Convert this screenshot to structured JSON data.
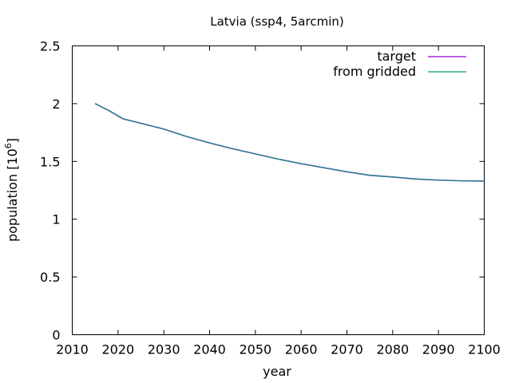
{
  "chart_data": {
    "type": "line",
    "title": "Latvia (ssp4, 5arcmin)",
    "xlabel": "year",
    "ylabel": "population [10",
    "ylabel_sup": "6",
    "ylabel_end": "]",
    "xlim": [
      2010,
      2100
    ],
    "ylim": [
      0,
      2.5
    ],
    "x_ticks": [
      2010,
      2020,
      2030,
      2040,
      2050,
      2060,
      2070,
      2080,
      2090,
      2100
    ],
    "y_ticks": [
      0,
      0.5,
      1,
      1.5,
      2,
      2.5
    ],
    "x_tick_labels": [
      "2010",
      "2020",
      "2030",
      "2040",
      "2050",
      "2060",
      "2070",
      "2080",
      "2090",
      "2100"
    ],
    "y_tick_labels": [
      "0",
      "0.5",
      "1",
      "1.5",
      "2",
      "2.5"
    ],
    "grid": false,
    "legend_position": "top-right",
    "series": [
      {
        "name": "target",
        "color": "#9400d3",
        "x": [
          2015,
          2018,
          2021,
          2025,
          2030,
          2035,
          2040,
          2045,
          2050,
          2055,
          2060,
          2065,
          2070,
          2075,
          2080,
          2085,
          2090,
          2095,
          2100
        ],
        "y": [
          2.0,
          1.94,
          1.87,
          1.83,
          1.78,
          1.715,
          1.66,
          1.61,
          1.565,
          1.52,
          1.48,
          1.445,
          1.41,
          1.38,
          1.365,
          1.348,
          1.338,
          1.332,
          1.33
        ]
      },
      {
        "name": "from gridded",
        "color": "#009e73",
        "x": [
          2015,
          2018,
          2021,
          2025,
          2030,
          2035,
          2040,
          2045,
          2050,
          2055,
          2060,
          2065,
          2070,
          2075,
          2080,
          2085,
          2090,
          2095,
          2100
        ],
        "y": [
          2.0,
          1.94,
          1.87,
          1.83,
          1.78,
          1.715,
          1.66,
          1.61,
          1.565,
          1.52,
          1.48,
          1.445,
          1.41,
          1.38,
          1.365,
          1.348,
          1.338,
          1.332,
          1.33
        ]
      }
    ]
  }
}
